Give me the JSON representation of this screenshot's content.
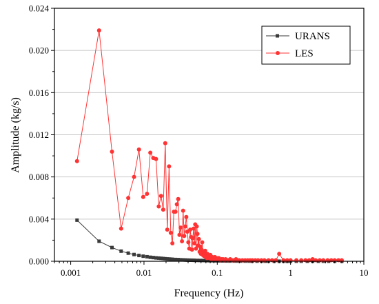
{
  "chart_data": {
    "type": "line",
    "xlabel": "Frequency (Hz)",
    "ylabel": "Amplitude (kg/s)",
    "xscale": "log",
    "xlim": [
      0.0006,
      10
    ],
    "ylim": [
      0,
      0.024
    ],
    "grid": "horizontal",
    "legend_position": "top-right",
    "x_ticks": [
      {
        "value": 0.001,
        "label": "0.001"
      },
      {
        "value": 0.01,
        "label": "0.01"
      },
      {
        "value": 0.1,
        "label": "0.1"
      },
      {
        "value": 1,
        "label": "1"
      },
      {
        "value": 10,
        "label": "10"
      }
    ],
    "y_ticks": [
      {
        "value": 0,
        "label": "0.000"
      },
      {
        "value": 0.004,
        "label": "0.004"
      },
      {
        "value": 0.008,
        "label": "0.008"
      },
      {
        "value": 0.012,
        "label": "0.012"
      },
      {
        "value": 0.016,
        "label": "0.016"
      },
      {
        "value": 0.02,
        "label": "0.020"
      },
      {
        "value": 0.024,
        "label": "0.024"
      }
    ],
    "series": [
      {
        "name": "URANS",
        "color": "#3a3a3a",
        "marker": "square",
        "x": [
          0.00122,
          0.00244,
          0.00366,
          0.00488,
          0.0061,
          0.00732,
          0.00854,
          0.00976,
          0.011,
          0.0122,
          0.0134,
          0.0146,
          0.0159,
          0.0171,
          0.0183,
          0.0195,
          0.0208,
          0.022,
          0.0232,
          0.0244,
          0.0269,
          0.0293,
          0.0317,
          0.0342,
          0.0366,
          0.039,
          0.0415,
          0.0439,
          0.0464,
          0.0488,
          0.0537,
          0.0586,
          0.0635,
          0.0684,
          0.0732,
          0.0781,
          0.085,
          0.092,
          0.1,
          0.11,
          0.12,
          0.13,
          0.14,
          0.15,
          0.17,
          0.19,
          0.21,
          0.24,
          0.27,
          0.3,
          0.35,
          0.4,
          0.45,
          0.5,
          0.6,
          0.7,
          0.8,
          0.9,
          1.0,
          1.2,
          1.4,
          1.7,
          2.0,
          2.4,
          2.8,
          3.3,
          4.0,
          5.0
        ],
        "values": [
          0.0039,
          0.0019,
          0.0013,
          0.00096,
          0.00077,
          0.00064,
          0.00055,
          0.00048,
          0.00043,
          0.00038,
          0.00035,
          0.00032,
          0.0003,
          0.00028,
          0.00026,
          0.00024,
          0.00022,
          0.00021,
          0.0002,
          0.00019,
          0.00017,
          0.00016,
          0.00014,
          0.00013,
          0.00012,
          0.00011,
          0.000105,
          0.0001,
          9.5e-05,
          9e-05,
          8e-05,
          7.5e-05,
          7e-05,
          6.5e-05,
          6e-05,
          5.5e-05,
          5e-05,
          4.5e-05,
          4e-05,
          3.6e-05,
          3.3e-05,
          3e-05,
          2.8e-05,
          2.6e-05,
          2.3e-05,
          2e-05,
          1.8e-05,
          1.6e-05,
          1.4e-05,
          1.2e-05,
          1e-05,
          9e-06,
          8e-06,
          7e-06,
          6e-06,
          5e-06,
          5e-06,
          4e-06,
          4e-06,
          3e-06,
          3e-06,
          3e-06,
          2e-06,
          2e-06,
          2e-06,
          2e-06,
          1e-06,
          1e-06
        ]
      },
      {
        "name": "LES",
        "color": "#ff3333",
        "marker": "circle",
        "x": [
          0.00122,
          0.00244,
          0.00366,
          0.00488,
          0.0061,
          0.00732,
          0.00854,
          0.00976,
          0.011,
          0.0122,
          0.0134,
          0.0146,
          0.0159,
          0.0171,
          0.0183,
          0.0195,
          0.0208,
          0.022,
          0.0232,
          0.0244,
          0.0256,
          0.0269,
          0.0281,
          0.0293,
          0.0305,
          0.0317,
          0.033,
          0.0342,
          0.0354,
          0.0366,
          0.0378,
          0.039,
          0.0403,
          0.0415,
          0.0427,
          0.0439,
          0.0452,
          0.0464,
          0.0476,
          0.0488,
          0.05,
          0.0513,
          0.0525,
          0.0537,
          0.0549,
          0.0562,
          0.0574,
          0.0586,
          0.0598,
          0.061,
          0.0623,
          0.0635,
          0.0647,
          0.0659,
          0.0671,
          0.0684,
          0.0696,
          0.0708,
          0.072,
          0.0732,
          0.0757,
          0.0781,
          0.0806,
          0.083,
          0.0854,
          0.0879,
          0.0903,
          0.0928,
          0.0952,
          0.0977,
          0.1001,
          0.105,
          0.11,
          0.115,
          0.12,
          0.125,
          0.13,
          0.14,
          0.15,
          0.16,
          0.17,
          0.18,
          0.19,
          0.2,
          0.22,
          0.24,
          0.26,
          0.28,
          0.3,
          0.33,
          0.36,
          0.4,
          0.44,
          0.5,
          0.56,
          0.63,
          0.7,
          0.8,
          0.9,
          1.0,
          1.2,
          1.4,
          1.6,
          1.8,
          2.0,
          2.2,
          2.5,
          2.8,
          3.2,
          3.6,
          4.0,
          4.5,
          5.0
        ],
        "values": [
          0.0095,
          0.0219,
          0.0104,
          0.0031,
          0.006,
          0.008,
          0.0106,
          0.0061,
          0.0064,
          0.0103,
          0.0098,
          0.0097,
          0.0052,
          0.0062,
          0.0049,
          0.0112,
          0.003,
          0.009,
          0.0027,
          0.0017,
          0.0047,
          0.0047,
          0.0054,
          0.0059,
          0.0025,
          0.0032,
          0.0019,
          0.0048,
          0.0024,
          0.0033,
          0.0042,
          0.0028,
          0.0018,
          0.0012,
          0.003,
          0.0023,
          0.0011,
          0.0022,
          0.0031,
          0.0017,
          0.0035,
          0.0012,
          0.0033,
          0.0026,
          0.0015,
          0.0021,
          0.0009,
          0.0014,
          0.0007,
          0.0011,
          0.0018,
          0.0006,
          0.0009,
          0.0005,
          0.0008,
          0.001,
          0.0004,
          0.0006,
          0.0003,
          0.0007,
          0.0005,
          0.0003,
          0.0006,
          0.0002,
          0.0004,
          0.0003,
          0.0002,
          0.0004,
          0.0002,
          0.0003,
          0.0002,
          0.0003,
          0.0001,
          0.0002,
          0.0002,
          0.0001,
          0.0002,
          0.0001,
          0.0002,
          0.0001,
          0.0001,
          0.0002,
          0.0001,
          0.0001,
          0.0001,
          0.0001,
          0.0001,
          0.0001,
          0.0001,
          0.0001,
          0.0001,
          0.0001,
          0.0001,
          0.0001,
          0.0001,
          0.0001,
          0.0007,
          0.0001,
          0.0001,
          0.0001,
          0.0001,
          0.0001,
          0.0001,
          0.0001,
          0.0002,
          0.0001,
          0.0001,
          0.0001,
          0.0001,
          0.0001,
          0.0001,
          0.0001,
          0.0001
        ]
      }
    ]
  }
}
